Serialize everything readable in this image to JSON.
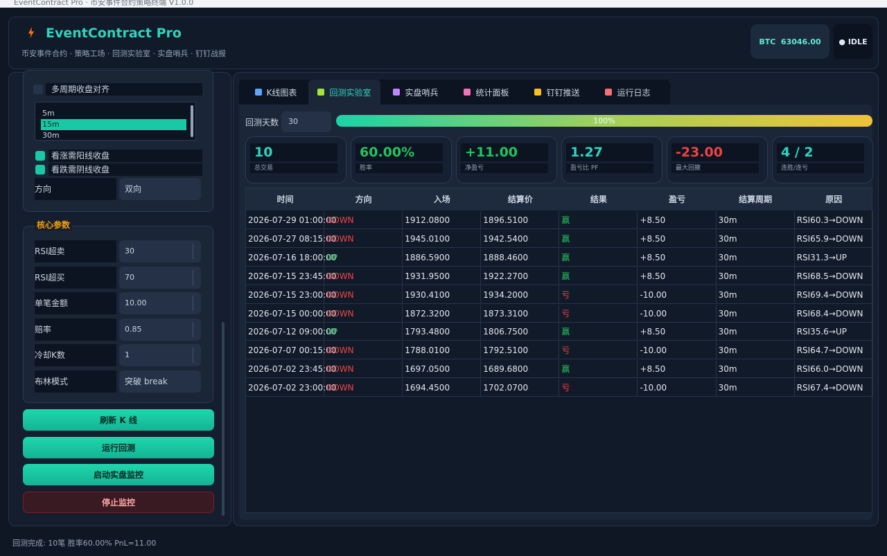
{
  "window": {
    "title": "EventContract Pro · 币安事件合约策略终端 V1.0.0"
  },
  "header": {
    "title": "EventContract Pro",
    "subtitle": "币安事件合约 · 策略工场 · 回测实验室 · 实盘哨兵 · 钉钉战报",
    "btc": "BTC  63046.00",
    "status": "● IDLE"
  },
  "sidebar": {
    "align_check": "多周期收盘对齐",
    "periods": [
      "5m",
      "15m",
      "30m"
    ],
    "checks": [
      "看涨需阳线收盘",
      "看跌需阴线收盘"
    ],
    "direction": {
      "label": "方向",
      "value": "双向"
    },
    "section": "核心参数",
    "params": [
      {
        "label": "RSI超卖",
        "value": "30"
      },
      {
        "label": "RSI超买",
        "value": "70"
      },
      {
        "label": "单笔金额",
        "value": "10.00"
      },
      {
        "label": "赔率",
        "value": "0.85"
      },
      {
        "label": "冷却K数",
        "value": "1"
      },
      {
        "label": "布林模式",
        "value": "突破 break"
      }
    ],
    "buttons": [
      "刷新 K 线",
      "运行回测",
      "启动实盘监控",
      "停止监控"
    ]
  },
  "tabs": [
    "K线图表",
    "回测实验室",
    "实盘哨兵",
    "统计面板",
    "钉钉推送",
    "运行日志"
  ],
  "backtest": {
    "days_label": "回测天数",
    "days": "30",
    "progress": {
      "value": 100,
      "label": "100%"
    },
    "stats": [
      {
        "value": "10",
        "label": "总交易",
        "color": "#2dd4bf"
      },
      {
        "value": "60.00%",
        "label": "胜率",
        "color": "#22c55e"
      },
      {
        "value": "+11.00",
        "label": "净盈亏",
        "color": "#22c55e"
      },
      {
        "value": "1.27",
        "label": "盈亏比 PF",
        "color": "#2dd4bf"
      },
      {
        "value": "-23.00",
        "label": "最大回撤",
        "color": "#ef4444"
      },
      {
        "value": "4 / 2",
        "label": "连胜/连亏",
        "color": "#2dd4bf"
      }
    ],
    "table": {
      "headers": [
        "时间",
        "方向",
        "入场",
        "结算价",
        "结果",
        "盈亏",
        "结算周期",
        "原因"
      ],
      "colors": {
        "DOWN": "#ef4444",
        "UP": "#22c55e",
        "赢": "#22c55e",
        "亏": "#ef4444"
      },
      "rows": [
        [
          "2026-07-29 01:00:00",
          "DOWN",
          "1912.0800",
          "1896.5100",
          "赢",
          "+8.50",
          "30m",
          "RSI60.3→DOWN"
        ],
        [
          "2026-07-27 08:15:00",
          "DOWN",
          "1945.0100",
          "1942.5400",
          "赢",
          "+8.50",
          "30m",
          "RSI65.9→DOWN"
        ],
        [
          "2026-07-16 18:00:00",
          "UP",
          "1886.5900",
          "1888.4600",
          "赢",
          "+8.50",
          "30m",
          "RSI31.3→UP"
        ],
        [
          "2026-07-15 23:45:00",
          "DOWN",
          "1931.9500",
          "1922.2700",
          "赢",
          "+8.50",
          "30m",
          "RSI68.5→DOWN"
        ],
        [
          "2026-07-15 23:00:00",
          "DOWN",
          "1930.4100",
          "1934.2000",
          "亏",
          "-10.00",
          "30m",
          "RSI69.4→DOWN"
        ],
        [
          "2026-07-15 00:00:00",
          "DOWN",
          "1872.3200",
          "1873.3100",
          "亏",
          "-10.00",
          "30m",
          "RSI68.4→DOWN"
        ],
        [
          "2026-07-12 09:00:00",
          "UP",
          "1793.4800",
          "1806.7500",
          "赢",
          "+8.50",
          "30m",
          "RSI35.6→UP"
        ],
        [
          "2026-07-07 00:15:00",
          "DOWN",
          "1788.0100",
          "1792.5100",
          "亏",
          "-10.00",
          "30m",
          "RSI64.7→DOWN"
        ],
        [
          "2026-07-02 23:45:00",
          "DOWN",
          "1697.0500",
          "1689.6800",
          "赢",
          "+8.50",
          "30m",
          "RSI66.0→DOWN"
        ],
        [
          "2026-07-02 23:00:00",
          "DOWN",
          "1694.4500",
          "1702.0700",
          "亏",
          "-10.00",
          "30m",
          "RSI67.4→DOWN"
        ]
      ]
    }
  },
  "status_bar": "回测完成: 10笔 胜率60.00% PnL=11.00"
}
